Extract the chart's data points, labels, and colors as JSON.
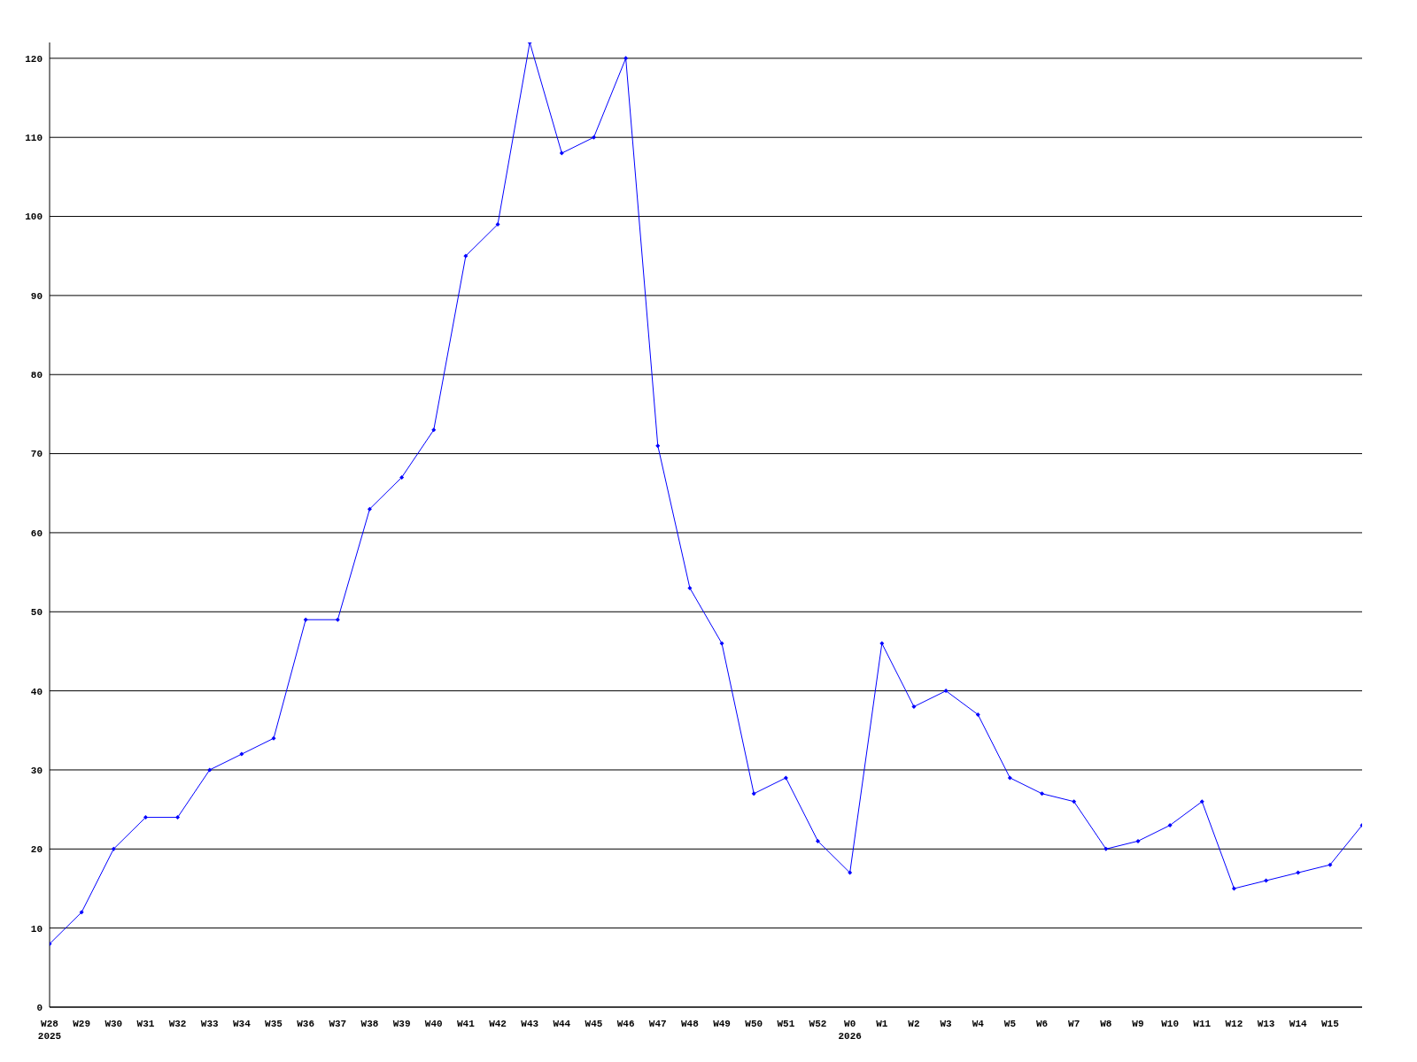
{
  "chart_data": {
    "type": "line",
    "categories": [
      "W28\n2025",
      "W29",
      "W30",
      "W31",
      "W32",
      "W33",
      "W34",
      "W35",
      "W36",
      "W37",
      "W38",
      "W39",
      "W40",
      "W41",
      "W42",
      "W43",
      "W44",
      "W45",
      "W46",
      "W47",
      "W48",
      "W49",
      "W50",
      "W51",
      "W52",
      "W0\n2026",
      "W1",
      "W2",
      "W3",
      "W4",
      "W5",
      "W6",
      "W7",
      "W8",
      "W9",
      "W10",
      "W11",
      "W12",
      "W13",
      "W14",
      "W15",
      null
    ],
    "series": [
      {
        "color": "#0000ff",
        "values": [
          8,
          12,
          20,
          24,
          24,
          30,
          32,
          34,
          49,
          49,
          63,
          67,
          73,
          95,
          99,
          122,
          108,
          110,
          120,
          71,
          53,
          46,
          27,
          29,
          21,
          17,
          46,
          38,
          40,
          37,
          29,
          27,
          26,
          20,
          21,
          23,
          26,
          15,
          16,
          17,
          18,
          23
        ]
      }
    ],
    "ylim": [
      0,
      122
    ],
    "yticks": [
      0,
      10,
      20,
      30,
      40,
      50,
      60,
      70,
      80,
      90,
      100,
      110,
      120
    ],
    "grid": "y",
    "marker": "diamond",
    "line_style": "solid",
    "legend": false
  }
}
